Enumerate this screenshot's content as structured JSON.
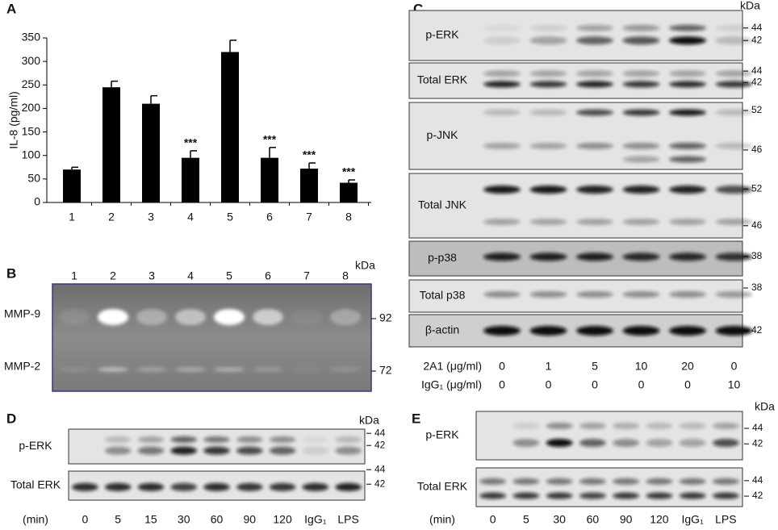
{
  "chart_data": {
    "type": "bar",
    "panel_label": "A",
    "y_label": "IL-8 (pg/ml)",
    "categories": [
      "1",
      "2",
      "3",
      "4",
      "5",
      "6",
      "7",
      "8"
    ],
    "values": [
      70,
      245,
      210,
      95,
      320,
      95,
      72,
      42
    ],
    "errors": [
      5,
      13,
      17,
      15,
      25,
      22,
      12,
      6
    ],
    "annotations": [
      null,
      null,
      null,
      "***",
      null,
      "***",
      "***",
      "***"
    ],
    "color": "#000000",
    "ylim": [
      0,
      350
    ],
    "yticks": [
      0,
      50,
      100,
      150,
      200,
      250,
      300,
      350
    ]
  },
  "panel_b": {
    "label": "B",
    "unit": "kDa",
    "lanes": [
      "1",
      "2",
      "3",
      "4",
      "5",
      "6",
      "7",
      "8"
    ],
    "bands": [
      {
        "name": "MMP-9",
        "marker": "92"
      },
      {
        "name": "MMP-2",
        "marker": "72"
      }
    ]
  },
  "panel_c": {
    "label": "C",
    "unit": "kDa",
    "blots": [
      {
        "name": "p-ERK",
        "markers": [
          "44",
          "42"
        ]
      },
      {
        "name": "Total ERK",
        "markers": [
          "44",
          "42"
        ]
      },
      {
        "name": "p-JNK",
        "markers": [
          "52",
          "46"
        ]
      },
      {
        "name": "Total JNK",
        "markers": [
          "52",
          "46"
        ]
      },
      {
        "name": "p-p38",
        "markers": [
          "38"
        ]
      },
      {
        "name": "Total p38",
        "markers": [
          "38"
        ]
      },
      {
        "name": "β-actin",
        "markers": [
          "42"
        ]
      }
    ],
    "conditions": [
      {
        "name": "2A1 (μg/ml)",
        "values": [
          "0",
          "1",
          "5",
          "10",
          "20",
          "0"
        ]
      },
      {
        "name": "IgG₁ (μg/ml)",
        "values": [
          "0",
          "0",
          "0",
          "0",
          "0",
          "10"
        ]
      }
    ]
  },
  "panel_d": {
    "label": "D",
    "unit": "kDa",
    "blots": [
      {
        "name": "p-ERK",
        "markers": [
          "44",
          "42"
        ]
      },
      {
        "name": "Total ERK",
        "markers": [
          "44",
          "42"
        ]
      }
    ],
    "time_label": "(min)",
    "lanes": [
      "0",
      "5",
      "15",
      "30",
      "60",
      "90",
      "120",
      "IgG₁",
      "LPS"
    ]
  },
  "panel_e": {
    "label": "E",
    "unit": "kDa",
    "blots": [
      {
        "name": "p-ERK",
        "markers": [
          "44",
          "42"
        ]
      },
      {
        "name": "Total ERK",
        "markers": [
          "44",
          "42"
        ]
      }
    ],
    "time_label": "(min)",
    "lanes": [
      "0",
      "5",
      "30",
      "60",
      "90",
      "120",
      "IgG₁",
      "LPS"
    ]
  }
}
